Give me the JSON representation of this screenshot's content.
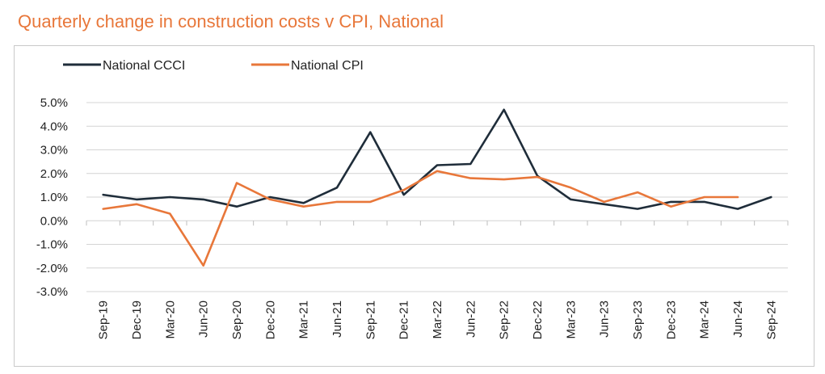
{
  "header": {
    "title": "Quarterly change in construction costs v CPI, National"
  },
  "colors": {
    "title": "#e8773a",
    "ccci": "#1f2d3a",
    "cpi": "#e8773a",
    "grid": "#d4d4d4"
  },
  "chart_data": {
    "type": "line",
    "title": "Quarterly change in construction costs v CPI, National",
    "xlabel": "",
    "ylabel": "",
    "ylim": [
      -3.0,
      5.0
    ],
    "yticks": [
      "5.0%",
      "4.0%",
      "3.0%",
      "2.0%",
      "1.0%",
      "0.0%",
      "-1.0%",
      "-2.0%",
      "-3.0%"
    ],
    "categories": [
      "Sep-19",
      "Dec-19",
      "Mar-20",
      "Jun-20",
      "Sep-20",
      "Dec-20",
      "Mar-21",
      "Jun-21",
      "Sep-21",
      "Dec-21",
      "Mar-22",
      "Jun-22",
      "Sep-22",
      "Dec-22",
      "Mar-23",
      "Jun-23",
      "Sep-23",
      "Dec-23",
      "Mar-24",
      "Jun-24",
      "Sep-24"
    ],
    "grid": true,
    "legend_position": "top-left",
    "series": [
      {
        "name": "National CCCI",
        "color": "#1f2d3a",
        "values": [
          1.1,
          0.9,
          1.0,
          0.9,
          0.6,
          1.0,
          0.75,
          1.4,
          3.75,
          1.1,
          2.35,
          2.4,
          4.7,
          1.9,
          0.9,
          0.7,
          0.5,
          0.8,
          0.8,
          0.5,
          1.0
        ]
      },
      {
        "name": "National CPI",
        "color": "#e8773a",
        "values": [
          0.5,
          0.7,
          0.3,
          -1.9,
          1.6,
          0.9,
          0.6,
          0.8,
          0.8,
          1.3,
          2.1,
          1.8,
          1.75,
          1.85,
          1.4,
          0.8,
          1.2,
          0.6,
          1.0,
          1.0,
          null
        ]
      }
    ]
  }
}
